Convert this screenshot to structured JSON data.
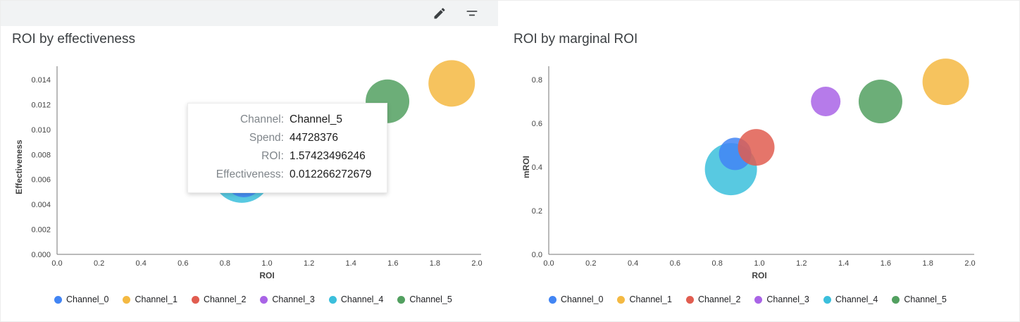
{
  "toolbar": {
    "icons": [
      {
        "name": "edit",
        "type": "pencil-icon"
      },
      {
        "name": "filter",
        "type": "filter-icon"
      }
    ]
  },
  "tooltip": {
    "rows": [
      {
        "label": "Channel:",
        "value": "Channel_5"
      },
      {
        "label": "Spend:",
        "value": "44728376"
      },
      {
        "label": "ROI:",
        "value": "1.57423496246"
      },
      {
        "label": "Effectiveness:",
        "value": "0.012266272679"
      }
    ]
  },
  "chart_data": [
    {
      "type": "scatter",
      "title": "ROI by effectiveness",
      "xlabel": "ROI",
      "ylabel": "Effectiveness",
      "xlim": [
        0,
        2.0
      ],
      "ylim": [
        0,
        0.014
      ],
      "grid": false,
      "legend_position": "bottom",
      "xticks": {
        "values": [
          0,
          0.2,
          0.4,
          0.6,
          0.8,
          1.0,
          1.2,
          1.4,
          1.6,
          1.8,
          2.0
        ],
        "labels": [
          "0.0",
          "0.2",
          "0.4",
          "0.6",
          "0.8",
          "1.0",
          "1.2",
          "1.4",
          "1.6",
          "1.8",
          "2.0"
        ]
      },
      "yticks": {
        "values": [
          0,
          0.002,
          0.004,
          0.006,
          0.008,
          0.01,
          0.012,
          0.014
        ],
        "labels": [
          "0.000",
          "0.002",
          "0.004",
          "0.006",
          "0.008",
          "0.010",
          "0.012",
          "0.014"
        ]
      },
      "points": [
        {
          "name": "Channel_4",
          "x": 0.88,
          "y": 0.0065,
          "r": 42,
          "color": "#3bbfdc"
        },
        {
          "name": "Channel_0",
          "x": 0.89,
          "y": 0.0061,
          "r": 27,
          "color": "#4285f4"
        },
        {
          "name": "Channel_5",
          "x": 1.574,
          "y": 0.012266,
          "r": 31,
          "color": "#52a060"
        },
        {
          "name": "Channel_1",
          "x": 1.88,
          "y": 0.0137,
          "r": 33,
          "color": "#f4b942"
        }
      ],
      "legend": [
        {
          "label": "Channel_0",
          "color": "#4285f4"
        },
        {
          "label": "Channel_1",
          "color": "#f4b942"
        },
        {
          "label": "Channel_2",
          "color": "#e15d50"
        },
        {
          "label": "Channel_3",
          "color": "#a964e6"
        },
        {
          "label": "Channel_4",
          "color": "#3bbfdc"
        },
        {
          "label": "Channel_5",
          "color": "#52a060"
        }
      ]
    },
    {
      "type": "scatter",
      "title": "ROI by marginal ROI",
      "xlabel": "ROI",
      "ylabel": "mROI",
      "xlim": [
        0,
        2.0
      ],
      "ylim": [
        0,
        0.8
      ],
      "grid": false,
      "legend_position": "bottom",
      "xticks": {
        "values": [
          0,
          0.2,
          0.4,
          0.6,
          0.8,
          1.0,
          1.2,
          1.4,
          1.6,
          1.8,
          2.0
        ],
        "labels": [
          "0.0",
          "0.2",
          "0.4",
          "0.6",
          "0.8",
          "1.0",
          "1.2",
          "1.4",
          "1.6",
          "1.8",
          "2.0"
        ]
      },
      "yticks": {
        "values": [
          0,
          0.2,
          0.4,
          0.6,
          0.8
        ],
        "labels": [
          "0.0",
          "0.2",
          "0.4",
          "0.6",
          "0.8"
        ]
      },
      "points": [
        {
          "name": "Channel_4",
          "x": 0.865,
          "y": 0.39,
          "r": 37,
          "color": "#3bbfdc"
        },
        {
          "name": "Channel_0",
          "x": 0.885,
          "y": 0.46,
          "r": 23,
          "color": "#4285f4"
        },
        {
          "name": "Channel_2",
          "x": 0.985,
          "y": 0.49,
          "r": 26,
          "color": "#e15d50"
        },
        {
          "name": "Channel_3",
          "x": 1.315,
          "y": 0.7,
          "r": 21,
          "color": "#a964e6"
        },
        {
          "name": "Channel_5",
          "x": 1.575,
          "y": 0.7,
          "r": 31,
          "color": "#52a060"
        },
        {
          "name": "Channel_1",
          "x": 1.885,
          "y": 0.79,
          "r": 33,
          "color": "#f4b942"
        }
      ],
      "legend": [
        {
          "label": "Channel_0",
          "color": "#4285f4"
        },
        {
          "label": "Channel_1",
          "color": "#f4b942"
        },
        {
          "label": "Channel_2",
          "color": "#e15d50"
        },
        {
          "label": "Channel_3",
          "color": "#a964e6"
        },
        {
          "label": "Channel_4",
          "color": "#3bbfdc"
        },
        {
          "label": "Channel_5",
          "color": "#52a060"
        }
      ]
    }
  ]
}
